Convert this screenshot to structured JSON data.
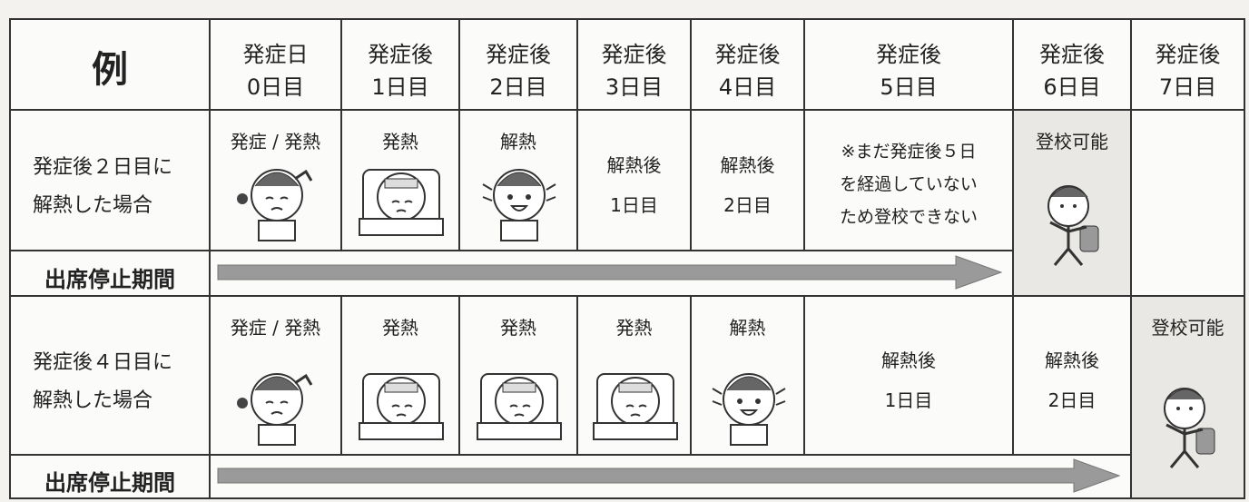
{
  "table": {
    "corner": "例",
    "columns": [
      [
        "発症日",
        "0日目"
      ],
      [
        "発症後",
        "1日目"
      ],
      [
        "発症後",
        "2日目"
      ],
      [
        "発症後",
        "3日目"
      ],
      [
        "発症後",
        "4日目"
      ],
      [
        "発症後",
        "5日目"
      ],
      [
        "発症後",
        "6日目"
      ],
      [
        "発症後",
        "7日目"
      ]
    ],
    "rows": [
      {
        "label": [
          "発症後２日目に",
          "解熱した場合"
        ],
        "cells": [
          [
            "発症 / 発熱"
          ],
          [
            "発熱"
          ],
          [
            "解熱"
          ],
          [
            "解熱後",
            "1日目"
          ],
          [
            "解熱後",
            "2日目"
          ],
          [
            "※まだ発症後５日",
            "を経過していない",
            "ため登校できない"
          ],
          [
            "登校可能"
          ]
        ],
        "period_label": "出席停止期間"
      },
      {
        "label": [
          "発症後４日目に",
          "解熱した場合"
        ],
        "cells": [
          [
            "発症 / 発熱"
          ],
          [
            "発熱"
          ],
          [
            "発熱"
          ],
          [
            "発熱"
          ],
          [
            "解熱"
          ],
          [
            "解熱後",
            "1日目"
          ],
          [
            "解熱後",
            "2日目"
          ],
          [
            "登校可能"
          ]
        ],
        "period_label": "出席停止期間"
      }
    ]
  }
}
